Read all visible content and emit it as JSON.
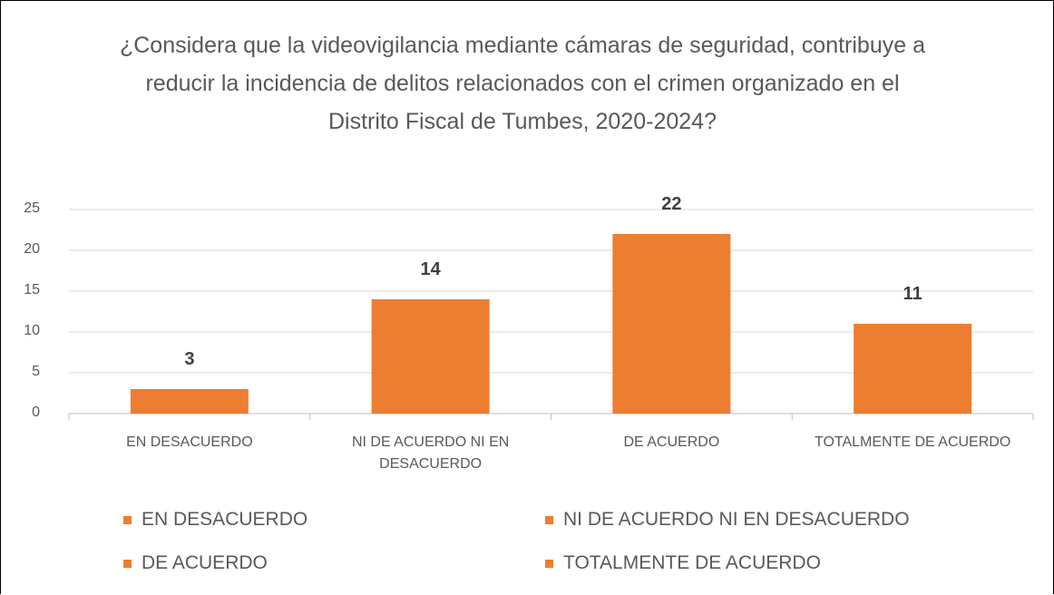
{
  "chart_data": {
    "type": "bar",
    "title": "¿Considera que la videovigilancia mediante cámaras de seguridad, contribuye a reducir la incidencia de delitos relacionados con el crimen organizado en el Distrito Fiscal de Tumbes, 2020-2024?",
    "categories": [
      "EN DESACUERDO",
      "NI DE ACUERDO NI EN DESACUERDO",
      "DE ACUERDO",
      "TOTALMENTE DE ACUERDO"
    ],
    "values": [
      3,
      14,
      22,
      11
    ],
    "color": "#ed7d31",
    "ylim": [
      0,
      25
    ],
    "yticks": [
      0,
      5,
      10,
      15,
      20,
      25
    ],
    "grid": true,
    "legend": "bottom"
  }
}
